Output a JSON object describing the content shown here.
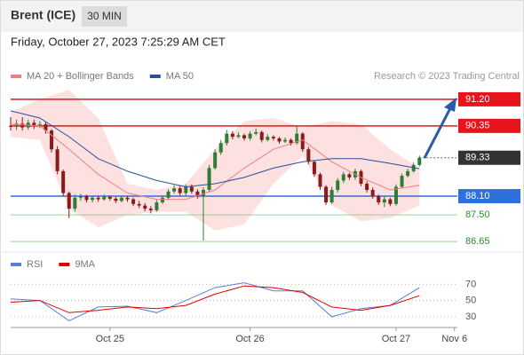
{
  "chart_data": [
    {
      "type": "candlestick",
      "title": "Brent (ICE)",
      "timeframe": "30 MIN",
      "subtitle": "Friday, October 27, 2023 7:25:29 AM CET",
      "source": "Research © 2023 Trading Central",
      "xlim": [
        0,
        76.5
      ],
      "ylim": [
        86.34,
        91.68
      ],
      "up_color": "#2e7d32",
      "down_color": "#8b1a1a",
      "open": [
        90.35,
        90.32,
        90.42,
        90.3,
        90.45,
        90.35,
        90.4,
        90.2,
        89.6,
        88.9,
        88.2,
        87.7,
        88.05,
        88.1,
        87.98,
        88.05,
        88.0,
        88.08,
        88.02,
        87.95,
        88.05,
        88.0,
        87.85,
        87.8,
        87.7,
        87.65,
        87.9,
        88.05,
        88.25,
        88.35,
        88.2,
        88.4,
        88.25,
        88.1,
        88.3,
        89.0,
        89.5,
        89.8,
        90.1,
        90.0,
        90.05,
        89.95,
        90.1,
        90.15,
        89.9,
        90.0,
        89.95,
        89.85,
        89.9,
        89.8,
        90.1,
        89.6,
        89.2,
        88.8,
        88.4,
        87.9,
        88.3,
        88.6,
        88.8,
        88.7,
        88.9,
        88.5,
        88.3,
        88.1,
        87.9,
        88.0,
        87.85,
        88.4,
        88.75,
        88.9,
        89.1
      ],
      "high": [
        90.63,
        90.55,
        90.63,
        90.55,
        90.55,
        90.5,
        90.48,
        90.25,
        89.7,
        88.95,
        88.25,
        88.15,
        88.18,
        88.15,
        88.12,
        88.12,
        88.15,
        88.12,
        88.08,
        88.12,
        88.1,
        88.05,
        87.95,
        87.88,
        87.78,
        87.98,
        88.12,
        88.32,
        88.45,
        88.42,
        88.48,
        88.48,
        88.32,
        88.38,
        89.1,
        89.6,
        89.9,
        90.22,
        90.18,
        90.15,
        90.1,
        90.18,
        90.26,
        90.2,
        90.08,
        90.05,
        90.0,
        89.98,
        89.95,
        90.35,
        90.15,
        89.68,
        89.25,
        88.85,
        88.45,
        88.4,
        88.68,
        88.88,
        88.85,
        88.98,
        88.95,
        88.58,
        88.38,
        88.15,
        88.1,
        88.05,
        88.48,
        88.82,
        88.98,
        89.18,
        89.4
      ],
      "low": [
        90.2,
        90.22,
        90.2,
        90.22,
        90.25,
        90.28,
        90.1,
        89.5,
        88.8,
        88.1,
        87.4,
        87.6,
        87.95,
        87.9,
        87.9,
        87.92,
        87.95,
        87.95,
        87.88,
        87.9,
        87.92,
        87.78,
        87.72,
        87.62,
        87.55,
        87.6,
        87.85,
        87.98,
        88.18,
        88.12,
        88.12,
        88.18,
        88.02,
        86.68,
        88.25,
        88.95,
        89.42,
        89.72,
        89.92,
        89.95,
        89.88,
        89.88,
        90.05,
        89.82,
        89.85,
        89.88,
        89.78,
        89.8,
        89.72,
        89.75,
        89.52,
        89.12,
        88.72,
        88.3,
        87.82,
        87.85,
        88.22,
        88.52,
        88.62,
        88.62,
        88.42,
        88.22,
        88.02,
        87.82,
        87.75,
        87.78,
        87.8,
        88.35,
        88.7,
        88.85,
        89.05
      ],
      "close": [
        90.32,
        90.42,
        90.3,
        90.45,
        90.35,
        90.4,
        90.2,
        89.6,
        88.9,
        88.2,
        87.7,
        88.05,
        88.1,
        87.98,
        88.05,
        88.0,
        88.08,
        88.02,
        87.95,
        88.05,
        88.0,
        87.85,
        87.8,
        87.7,
        87.65,
        87.9,
        88.05,
        88.25,
        88.35,
        88.2,
        88.4,
        88.25,
        88.1,
        88.3,
        89.0,
        89.5,
        89.8,
        90.1,
        90.0,
        90.05,
        89.95,
        90.1,
        90.15,
        89.9,
        90.0,
        89.95,
        89.85,
        89.9,
        89.8,
        90.1,
        89.6,
        89.2,
        88.8,
        88.4,
        87.9,
        88.3,
        88.6,
        88.8,
        88.7,
        88.9,
        88.5,
        88.3,
        88.1,
        87.9,
        88.0,
        87.85,
        88.4,
        88.75,
        88.9,
        89.1,
        89.33
      ],
      "series": [
        {
          "name": "MA 20 + Bollinger Bands",
          "color": "#f08080",
          "band_color": "#fde0e0",
          "x": [
            0,
            5,
            10,
            15,
            20,
            25,
            30,
            35,
            40,
            45,
            50,
            55,
            60,
            65,
            70
          ],
          "values": [
            90.4,
            90.35,
            89.6,
            88.8,
            88.2,
            88.0,
            88.0,
            88.3,
            89.0,
            89.6,
            89.9,
            89.2,
            88.7,
            88.3,
            88.45
          ],
          "upper": [
            90.8,
            91.2,
            91.5,
            90.6,
            88.5,
            88.3,
            88.5,
            89.6,
            90.5,
            90.6,
            90.3,
            90.5,
            90.4,
            89.6,
            89.0
          ],
          "lower": [
            90.0,
            89.9,
            87.7,
            87.1,
            87.5,
            87.6,
            87.6,
            87.0,
            87.2,
            88.5,
            89.4,
            87.8,
            87.3,
            87.4,
            87.8
          ]
        },
        {
          "name": "MA 50",
          "color": "#2a4f9a",
          "x": [
            0,
            5,
            10,
            15,
            20,
            25,
            30,
            35,
            40,
            45,
            50,
            55,
            60,
            65,
            70
          ],
          "values": [
            90.83,
            90.6,
            90.0,
            89.3,
            88.9,
            88.6,
            88.4,
            88.5,
            88.7,
            89.0,
            89.2,
            89.3,
            89.3,
            89.15,
            88.98
          ]
        }
      ],
      "levels": [
        {
          "value": 91.2,
          "label": "91.20",
          "color": "#e8141b",
          "boxed": true
        },
        {
          "value": 90.35,
          "label": "90.35",
          "color": "#e8141b",
          "boxed": true
        },
        {
          "value": 89.33,
          "label": "89.33",
          "color": "#333333",
          "boxed": true,
          "dotted": true
        },
        {
          "value": 88.1,
          "label": "88.10",
          "color": "#2f6fde",
          "boxed": true
        },
        {
          "value": 87.5,
          "label": "87.50",
          "color": "#2e8b2e",
          "boxed": false
        },
        {
          "value": 86.65,
          "label": "86.65",
          "color": "#2e8b2e",
          "boxed": false
        }
      ]
    },
    {
      "type": "line",
      "xlim": [
        0,
        76.5
      ],
      "ylim": [
        20,
        88
      ],
      "yticks": [
        30,
        50,
        70
      ],
      "xticks": [
        {
          "value": 17,
          "label": "Oct 25"
        },
        {
          "value": 41,
          "label": "Oct 26"
        },
        {
          "value": 66,
          "label": "Oct 27"
        },
        {
          "value": 76,
          "label": "Nov 6"
        }
      ],
      "series": [
        {
          "name": "RSI",
          "color": "#5b7fd6",
          "x": [
            0,
            5,
            10,
            15,
            20,
            25,
            30,
            35,
            40,
            45,
            50,
            55,
            60,
            65,
            70
          ],
          "values": [
            52,
            50,
            25,
            42,
            43,
            35,
            50,
            66,
            72,
            62,
            62,
            30,
            40,
            44,
            66
          ]
        },
        {
          "name": "9MA",
          "color": "#e00000",
          "x": [
            0,
            5,
            10,
            15,
            20,
            25,
            30,
            35,
            40,
            45,
            50,
            55,
            60,
            65,
            70
          ],
          "values": [
            48,
            50,
            35,
            38,
            42,
            40,
            44,
            58,
            68,
            66,
            60,
            42,
            38,
            44,
            56
          ]
        }
      ]
    }
  ]
}
